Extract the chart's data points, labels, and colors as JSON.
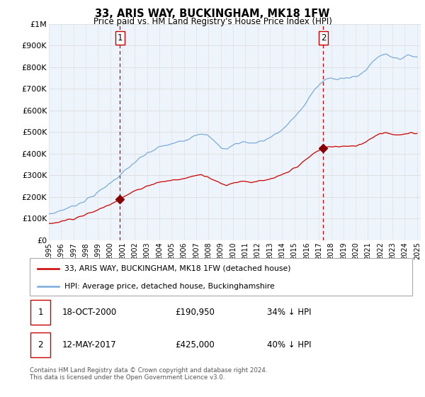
{
  "title": "33, ARIS WAY, BUCKINGHAM, MK18 1FW",
  "subtitle": "Price paid vs. HM Land Registry's House Price Index (HPI)",
  "ylim": [
    0,
    1000000
  ],
  "yticks": [
    0,
    100000,
    200000,
    300000,
    400000,
    500000,
    600000,
    700000,
    800000,
    900000,
    1000000
  ],
  "ytick_labels": [
    "£0",
    "£100K",
    "£200K",
    "£300K",
    "£400K",
    "£500K",
    "£600K",
    "£700K",
    "£800K",
    "£900K",
    "£1M"
  ],
  "xlim_start": 1995.0,
  "xlim_end": 2025.3,
  "sale1_x": 2000.79,
  "sale1_y": 190950,
  "sale2_x": 2017.36,
  "sale2_y": 425000,
  "sale1_label": "1",
  "sale2_label": "2",
  "sale1_date": "18-OCT-2000",
  "sale1_price": "£190,950",
  "sale1_note": "34% ↓ HPI",
  "sale2_date": "12-MAY-2017",
  "sale2_price": "£425,000",
  "sale2_note": "40% ↓ HPI",
  "red_line_color": "#cc0000",
  "blue_line_color": "#7aacdb",
  "dashed_line_color": "#cc0000",
  "marker_color": "#880000",
  "grid_color": "#dddddd",
  "legend_label_red": "33, ARIS WAY, BUCKINGHAM, MK18 1FW (detached house)",
  "legend_label_blue": "HPI: Average price, detached house, Buckinghamshire",
  "footer": "Contains HM Land Registry data © Crown copyright and database right 2024.\nThis data is licensed under the Open Government Licence v3.0."
}
